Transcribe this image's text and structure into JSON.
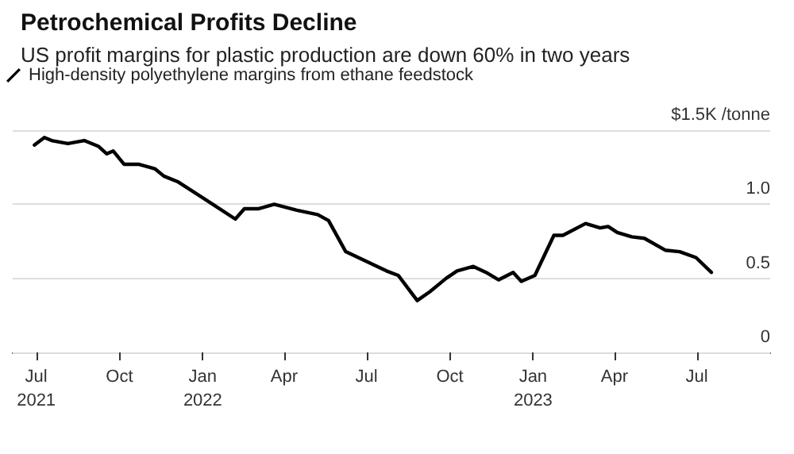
{
  "chart_data": {
    "type": "line",
    "title": "Petrochemical Profits Decline",
    "subtitle": "US profit margins for plastic production are down 60% in two years",
    "x": [
      "2021-06-29",
      "2021-07-10",
      "2021-07-18",
      "2021-08-05",
      "2021-08-23",
      "2021-09-08",
      "2021-09-17",
      "2021-09-24",
      "2021-10-06",
      "2021-10-22",
      "2021-11-09",
      "2021-11-19",
      "2021-12-05",
      "2022-01-12",
      "2022-02-06",
      "2022-02-16",
      "2022-03-04",
      "2022-03-21",
      "2022-04-15",
      "2022-05-08",
      "2022-05-20",
      "2022-06-08",
      "2022-07-23",
      "2022-08-05",
      "2022-08-26",
      "2022-09-09",
      "2022-09-27",
      "2022-10-09",
      "2022-10-27",
      "2022-11-10",
      "2022-11-24",
      "2022-12-10",
      "2022-12-19",
      "2023-01-03",
      "2023-01-24",
      "2023-02-03",
      "2023-02-28",
      "2023-03-16",
      "2023-03-25",
      "2023-04-04",
      "2023-04-20",
      "2023-05-04",
      "2023-05-27",
      "2023-06-12",
      "2023-06-30",
      "2023-07-17"
    ],
    "series": [
      {
        "name": "High-density polyethylene margins from ethane feedstock",
        "color": "#000000",
        "values": [
          1.4,
          1.45,
          1.43,
          1.41,
          1.43,
          1.39,
          1.34,
          1.36,
          1.27,
          1.27,
          1.24,
          1.19,
          1.15,
          1.0,
          0.9,
          0.97,
          0.97,
          1.0,
          0.96,
          0.93,
          0.89,
          0.68,
          0.55,
          0.52,
          0.35,
          0.41,
          0.5,
          0.55,
          0.58,
          0.54,
          0.49,
          0.54,
          0.48,
          0.52,
          0.79,
          0.79,
          0.87,
          0.84,
          0.85,
          0.81,
          0.78,
          0.77,
          0.69,
          0.68,
          0.64,
          0.54
        ]
      }
    ],
    "xlim": [
      "2021-06-05",
      "2023-09-20"
    ],
    "xticks": [
      {
        "value": "2021-07-01",
        "label": "Jul\n2021"
      },
      {
        "value": "2021-10-01",
        "label": "Oct"
      },
      {
        "value": "2022-01-01",
        "label": "Jan\n2022"
      },
      {
        "value": "2022-04-01",
        "label": "Apr"
      },
      {
        "value": "2022-07-01",
        "label": "Jul"
      },
      {
        "value": "2022-10-01",
        "label": "Oct"
      },
      {
        "value": "2023-01-01",
        "label": "Jan\n2023"
      },
      {
        "value": "2023-04-01",
        "label": "Apr"
      },
      {
        "value": "2023-07-01",
        "label": "Jul"
      }
    ],
    "ylim": [
      0,
      1.5
    ],
    "yticks": [
      0,
      0.5,
      {
        "value": 1,
        "label": "1.0"
      },
      {
        "value": 1.5,
        "label": "$1.5K /tonne"
      }
    ],
    "grid": "y",
    "legend": "top left",
    "marker": "none",
    "line_style": "solid"
  }
}
